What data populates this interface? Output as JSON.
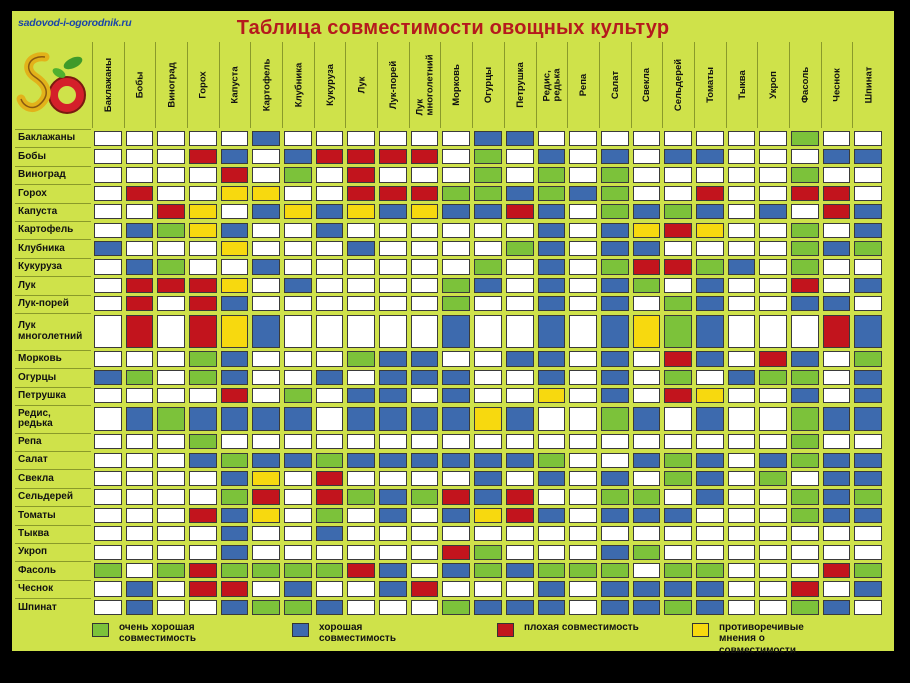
{
  "site_url": "sadovod-i-ogorodnik.ru",
  "title": "Таблица совместимости овощных культур",
  "colors": {
    "G": "#7cc23a",
    "B": "#3d6aae",
    "R": "#c2141d",
    "Y": "#f7d90f",
    "W": "#ffffff",
    "X": "#ffffff"
  },
  "crops": [
    "Баклажаны",
    "Бобы",
    "Виноград",
    "Горох",
    "Капуста",
    "Картофель",
    "Клубника",
    "Кукуруза",
    "Лук",
    "Лук-порей",
    "Лук многолетний",
    "Морковь",
    "Огурцы",
    "Петрушка",
    "Редис, редька",
    "Репа",
    "Салат",
    "Свекла",
    "Сельдерей",
    "Томаты",
    "Тыква",
    "Укроп",
    "Фасоль",
    "Чеснок",
    "Шпинат"
  ],
  "column_labels": [
    "Баклажаны",
    "Бобы",
    "Виноград",
    "Горох",
    "Капуста",
    "Картофель",
    "Клубника",
    "Кукуруза",
    "Лук",
    "Лук-порей",
    "Лук\nмноголетний",
    "Морковь",
    "Огурцы",
    "Петрушка",
    "Редис,\nредька",
    "Репа",
    "Салат",
    "Свекла",
    "Сельдерей",
    "Томаты",
    "Тыква",
    "Укроп",
    "Фасоль",
    "Чеснок",
    "Шпинат"
  ],
  "row_labels": [
    "Баклажаны",
    "Бобы",
    "Виноград",
    "Горох",
    "Капуста",
    "Картофель",
    "Клубника",
    "Кукуруза",
    "Лук",
    "Лук-порей",
    "Лук\nмноголетний",
    "Морковь",
    "Огурцы",
    "Петрушка",
    "Редис,\nредька",
    "Репа",
    "Салат",
    "Свекла",
    "Сельдерей",
    "Томаты",
    "Тыква",
    "Укроп",
    "Фасоль",
    "Чеснок",
    "Шпинат"
  ],
  "matrix": [
    "XWWWWBWWWWWWBBWWWWWWWWGWW",
    "WXWRBWBRRRRWGWBWBWBBWWWBB",
    "WWXWRWGWRWWWGWGWGWWWWWGWW",
    "WRWXYYWWRRRGGBGBGWWRWWRRW",
    "WWRYXBYBYBYBBRBWGBGBWBWRB",
    "WBGYBXWBWWWWWWBWBYRYWWGWB",
    "BWWWYWXWBWWWWGBWBBWWWWGBG",
    "WBGWWBWXWWWWGWBWGRRGBWGWW",
    "WRRRYWBWXWWGBWBWBGWBWWRWB",
    "WRWRBWWWWXWGWWBWBWGBWWBBW",
    "WRWRYBWWWWXBWWBWBYGBWWWRB",
    "WWWGBWWWGBBXWBBWBWRBWRBWG",
    "BGWGBWWBWBBBXWBWBWGWBGGWB",
    "WWWWRWGWBBWBWXYWBWRYWWBWB",
    "WBGBBBBWBBBBYBXWGBWBWWGBB",
    "WWWGWWWWWWWWWWWXWWWWWWGWW",
    "WWWBGBBGBBBBBBGWXBGBWBGBB",
    "WWWWBYWRWWWWBWBWBXGBWGWBB",
    "WWWWGRWRGBGRBRWWGGXBWWGBG",
    "WWWRBYWGWBWBYRBWBBBXWWGBB",
    "WWWWBWWBWWWWWWWWWWWWXWWWW",
    "WWWWBWWWWWWRGWWWBGWWWXWWW",
    "GWGRGGGGRBWBGBGGGWGGWWXRG",
    "WBWRRWBWWBRWWWBWBBBBWWRXB",
    "WBWWBGGBWWWGBBBWBBGBWWGBX"
  ],
  "legend": [
    {
      "key": "G",
      "label": "очень хорошая совместимость"
    },
    {
      "key": "B",
      "label": "хорошая совместимость"
    },
    {
      "key": "R",
      "label": "плохая совместимость"
    },
    {
      "key": "Y",
      "label": "противоречивые мнения о совместимости"
    }
  ],
  "logo_letters": "SO"
}
